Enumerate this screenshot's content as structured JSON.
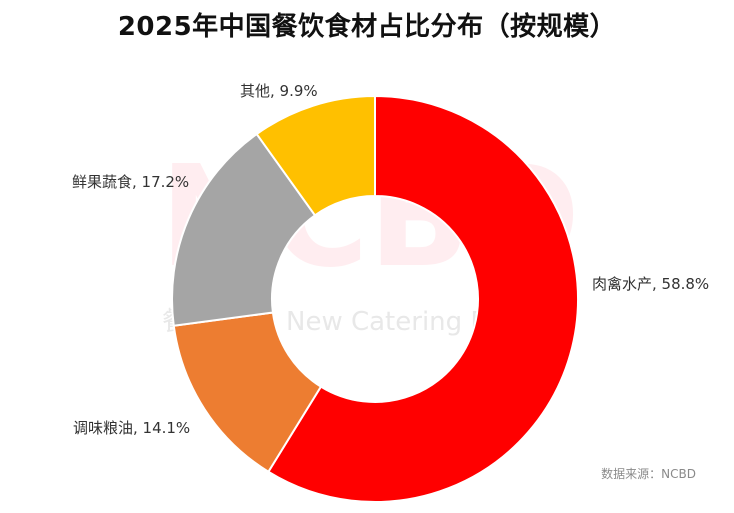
{
  "chart_data": {
    "type": "pie",
    "title": "2025年中国餐饮食材占比分布（按规模）",
    "categories": [
      "肉禽水产",
      "调味粮油",
      "鲜果蔬食",
      "其他"
    ],
    "values": [
      58.8,
      14.1,
      17.2,
      9.9
    ],
    "value_unit": "%",
    "labels": [
      "肉禽水产, 58.8%",
      "调味粮油, 14.1%",
      "鲜果蔬食, 17.2%",
      "其他, 9.9%"
    ],
    "colors": [
      "#ff0000",
      "#ed7d31",
      "#a5a5a5",
      "#ffc000"
    ],
    "donut": true,
    "legend": "none"
  },
  "source_note": "数据来源：NCBD",
  "watermark": {
    "logo": "NCBD",
    "text": "New Catering B",
    "prefix": "餐"
  }
}
